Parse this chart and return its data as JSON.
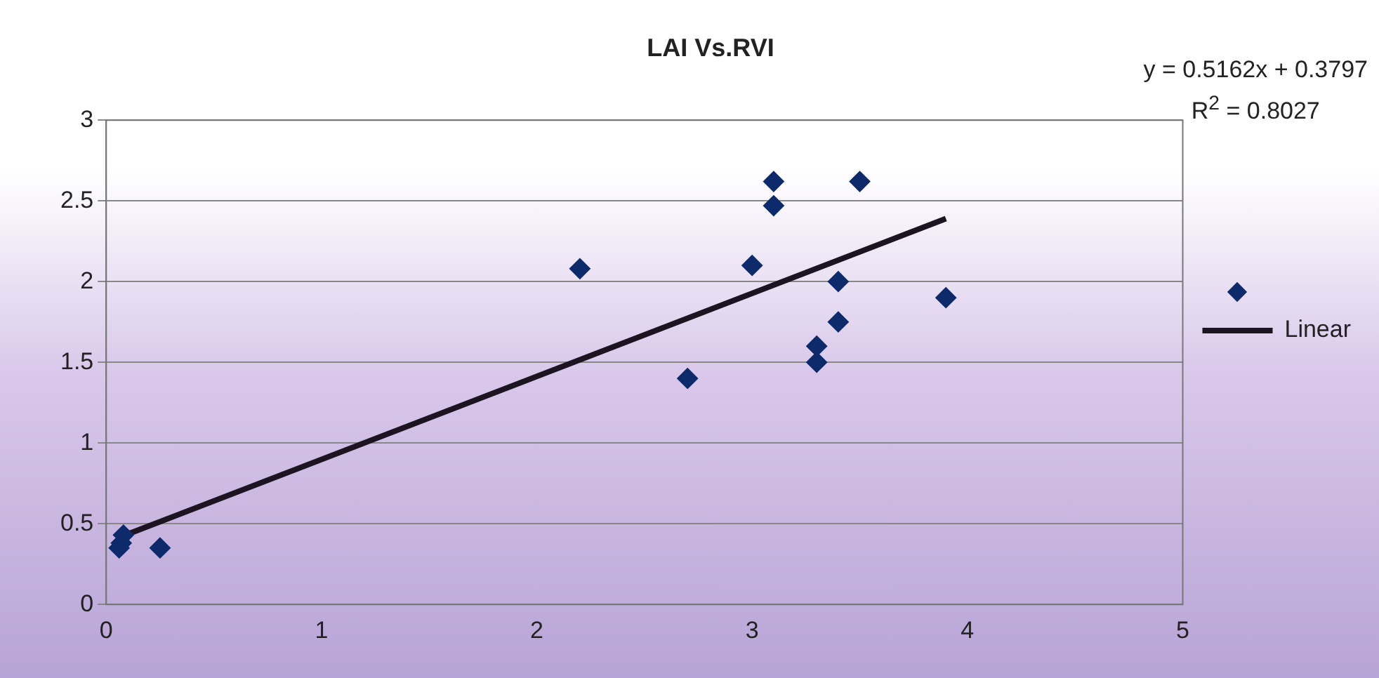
{
  "chart_data": {
    "type": "scatter",
    "title": "LAI Vs.RVI",
    "x": [
      0.06,
      0.07,
      0.08,
      0.25,
      2.2,
      2.7,
      3.0,
      3.1,
      3.1,
      3.3,
      3.3,
      3.4,
      3.4,
      3.5,
      3.9
    ],
    "series": [
      {
        "color": "#0d2a6b",
        "marker": "diamond",
        "values": [
          0.35,
          0.38,
          0.43,
          0.35,
          2.08,
          1.4,
          2.1,
          2.62,
          2.47,
          1.6,
          1.5,
          2.0,
          1.75,
          2.62,
          1.9
        ]
      },
      {
        "type": "line",
        "name": "Linear",
        "color": "#1c1420",
        "marker": "none",
        "x": [
          0.07,
          3.9
        ],
        "values": [
          0.42,
          2.39
        ]
      }
    ],
    "xlim": [
      0,
      5
    ],
    "xticks": [
      0,
      1,
      2,
      3,
      4,
      5
    ],
    "ylim": [
      0,
      3
    ],
    "yticks": [
      0,
      0.5,
      1,
      1.5,
      2,
      2.5,
      3
    ],
    "grid": "y",
    "legend": "right",
    "annotations": [
      "y = 0.5162x + 0.3797",
      "R$^{2}$ = 0.8027"
    ]
  }
}
